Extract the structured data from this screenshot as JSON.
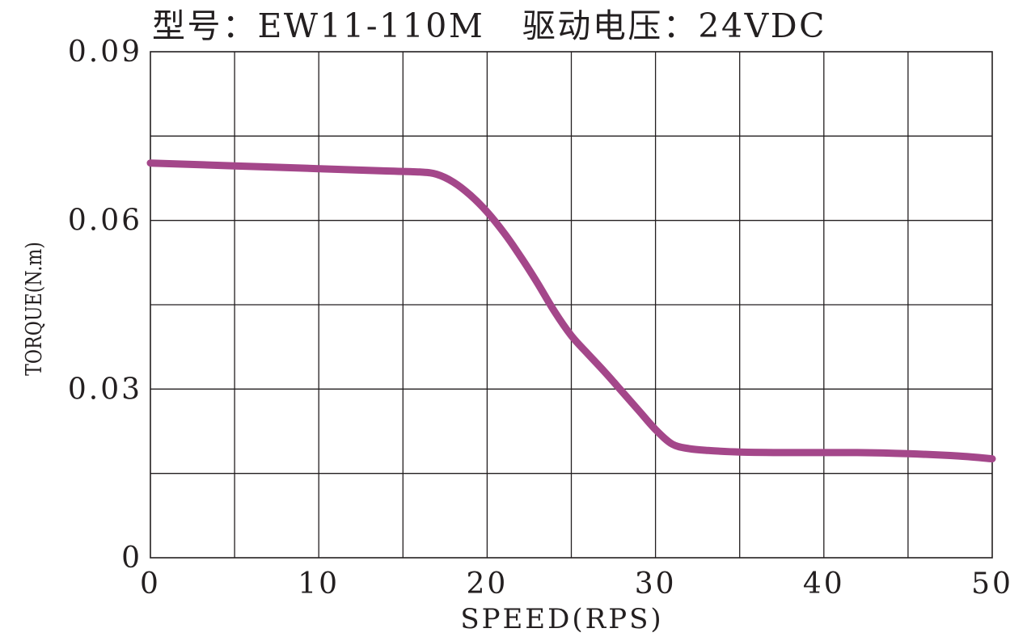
{
  "chart_data": {
    "type": "line",
    "title": "型号：EW11-110M   驱动电压：24VDC",
    "xlabel": "SPEED(RPS)",
    "ylabel": "TORQUE(N.m)",
    "xlim": [
      0,
      50
    ],
    "ylim": [
      0,
      0.09
    ],
    "x_ticks": [
      0,
      10,
      20,
      30,
      40,
      50
    ],
    "x_tick_labels": [
      "0",
      "10",
      "20",
      "30",
      "40",
      "50"
    ],
    "y_ticks": [
      0,
      0.03,
      0.06,
      0.09
    ],
    "y_tick_labels": [
      "0",
      "0.03",
      "0.06",
      "0.09"
    ],
    "grid": true,
    "x_grid_step": 5,
    "y_grid_step": 0.015,
    "line_color": "#a4478a",
    "grid_color": "#231f20",
    "series": [
      {
        "x": [
          0,
          5,
          10,
          14,
          16,
          17,
          18,
          19,
          20,
          21,
          22,
          23,
          24,
          25,
          26,
          27,
          28,
          29,
          30,
          31,
          32,
          33,
          35,
          38,
          42,
          45,
          48,
          50
        ],
        "y": [
          0.0702,
          0.0697,
          0.0692,
          0.0688,
          0.0686,
          0.0682,
          0.0668,
          0.0645,
          0.0615,
          0.0578,
          0.0535,
          0.0488,
          0.0438,
          0.0395,
          0.0362,
          0.033,
          0.0296,
          0.0262,
          0.0228,
          0.0202,
          0.0194,
          0.0191,
          0.0188,
          0.0187,
          0.0187,
          0.0185,
          0.0181,
          0.0176
        ]
      }
    ]
  }
}
